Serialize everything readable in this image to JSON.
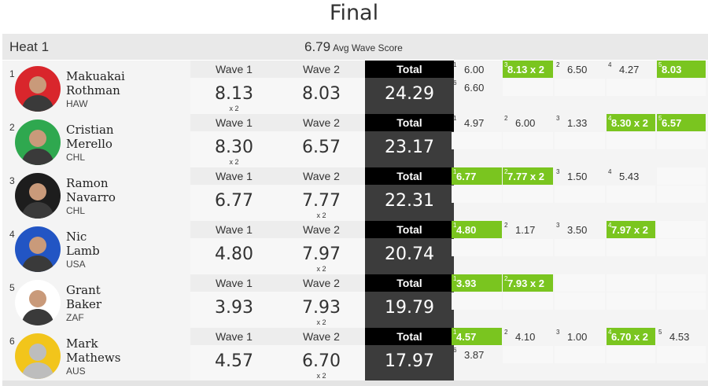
{
  "title": "Final",
  "heat": {
    "name": "Heat 1",
    "avg_score": "6.79",
    "avg_label": "Avg Wave Score"
  },
  "column_labels": {
    "wave1": "Wave 1",
    "wave2": "Wave 2",
    "total": "Total"
  },
  "colors": {
    "highlight": "#7ac51f",
    "total_bg": "#3c3c3c",
    "total_header": "#000000"
  },
  "athletes": [
    {
      "rank": "1",
      "first": "Makuakai",
      "last": "Rothman",
      "country": "HAW",
      "avatar_bg": "#d9262c",
      "wave1": "8.13",
      "wave1_mult": "x 2",
      "wave2": "8.03",
      "wave2_mult": "",
      "total": "24.29",
      "waves": [
        {
          "n": "1",
          "score": "6.00",
          "hl": false
        },
        {
          "n": "3",
          "score": "8.13 x 2",
          "hl": true
        },
        {
          "n": "2",
          "score": "6.50",
          "hl": false
        },
        {
          "n": "4",
          "score": "4.27",
          "hl": false
        },
        {
          "n": "5",
          "score": "8.03",
          "hl": true
        },
        {
          "n": "6",
          "score": "6.60",
          "hl": false
        }
      ]
    },
    {
      "rank": "2",
      "first": "Cristian",
      "last": "Merello",
      "country": "CHL",
      "avatar_bg": "#2fa84f",
      "wave1": "8.30",
      "wave1_mult": "x 2",
      "wave2": "6.57",
      "wave2_mult": "",
      "total": "23.17",
      "waves": [
        {
          "n": "1",
          "score": "4.97",
          "hl": false
        },
        {
          "n": "2",
          "score": "6.00",
          "hl": false
        },
        {
          "n": "3",
          "score": "1.33",
          "hl": false
        },
        {
          "n": "4",
          "score": "8.30 x 2",
          "hl": true
        },
        {
          "n": "5",
          "score": "6.57",
          "hl": true
        }
      ]
    },
    {
      "rank": "3",
      "first": "Ramon",
      "last": "Navarro",
      "country": "CHL",
      "avatar_bg": "#1d1d1d",
      "wave1": "6.77",
      "wave1_mult": "",
      "wave2": "7.77",
      "wave2_mult": "x 2",
      "total": "22.31",
      "waves": [
        {
          "n": "1",
          "score": "6.77",
          "hl": true
        },
        {
          "n": "2",
          "score": "7.77 x 2",
          "hl": true
        },
        {
          "n": "3",
          "score": "1.50",
          "hl": false
        },
        {
          "n": "4",
          "score": "5.43",
          "hl": false
        }
      ]
    },
    {
      "rank": "4",
      "first": "Nic",
      "last": "Lamb",
      "country": "USA",
      "avatar_bg": "#2255c4",
      "wave1": "4.80",
      "wave1_mult": "",
      "wave2": "7.97",
      "wave2_mult": "x 2",
      "total": "20.74",
      "waves": [
        {
          "n": "1",
          "score": "4.80",
          "hl": true
        },
        {
          "n": "2",
          "score": "1.17",
          "hl": false
        },
        {
          "n": "3",
          "score": "3.50",
          "hl": false
        },
        {
          "n": "4",
          "score": "7.97 x 2",
          "hl": true
        }
      ]
    },
    {
      "rank": "5",
      "first": "Grant",
      "last": "Baker",
      "country": "ZAF",
      "avatar_bg": "#ffffff",
      "wave1": "3.93",
      "wave1_mult": "",
      "wave2": "7.93",
      "wave2_mult": "x 2",
      "total": "19.79",
      "waves": [
        {
          "n": "1",
          "score": "3.93",
          "hl": true
        },
        {
          "n": "2",
          "score": "7.93 x 2",
          "hl": true
        }
      ]
    },
    {
      "rank": "6",
      "first": "Mark",
      "last": "Mathews",
      "country": "AUS",
      "avatar_bg": "#f2c51b",
      "wave1": "4.57",
      "wave1_mult": "",
      "wave2": "6.70",
      "wave2_mult": "x 2",
      "total": "17.97",
      "waves": [
        {
          "n": "1",
          "score": "4.57",
          "hl": true
        },
        {
          "n": "2",
          "score": "4.10",
          "hl": false
        },
        {
          "n": "3",
          "score": "1.00",
          "hl": false
        },
        {
          "n": "4",
          "score": "6.70 x 2",
          "hl": true
        },
        {
          "n": "5",
          "score": "4.53",
          "hl": false
        },
        {
          "n": "6",
          "score": "3.87",
          "hl": false
        }
      ]
    }
  ]
}
